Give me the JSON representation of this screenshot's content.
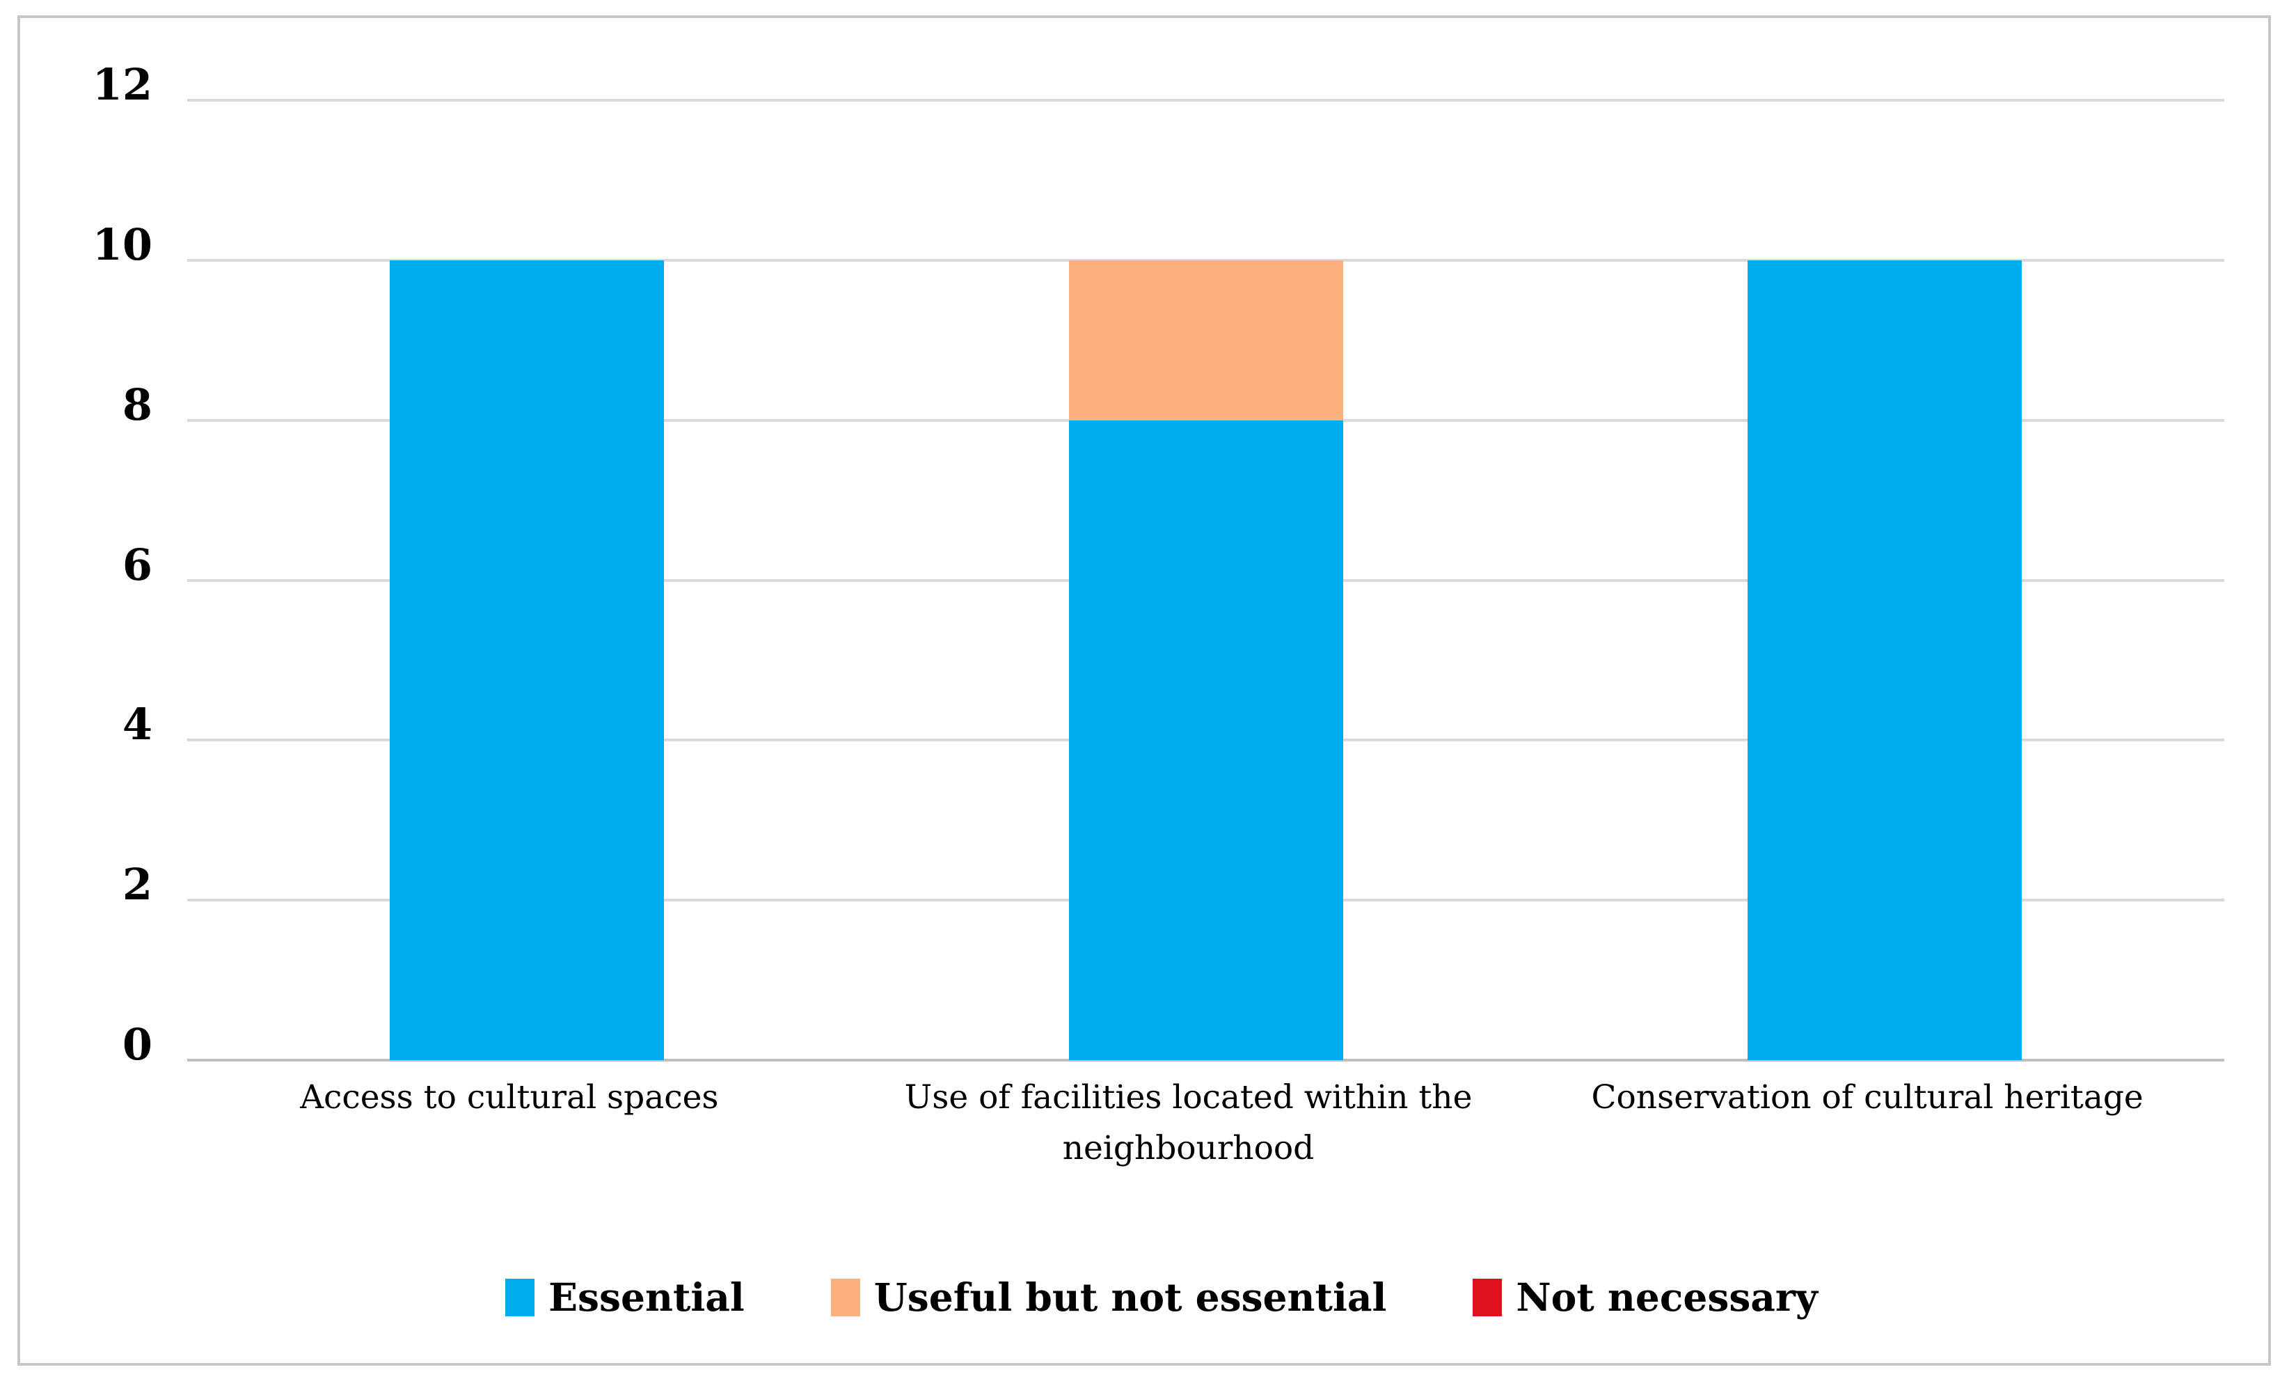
{
  "chart_data": {
    "type": "bar",
    "stacked": true,
    "title": "",
    "xlabel": "",
    "ylabel": "",
    "categories": [
      "Access to cultural spaces",
      "Use of facilities located within the neighbourhood",
      "Conservation of cultural heritage"
    ],
    "series": [
      {
        "name": "Essential",
        "color": "#00AEEF",
        "values": [
          10,
          8,
          10
        ]
      },
      {
        "name": "Useful but not essential",
        "color": "#FDB07E",
        "values": [
          0,
          2,
          0
        ]
      },
      {
        "name": "Not necessary",
        "color": "#E0101C",
        "values": [
          0,
          0,
          0
        ]
      }
    ],
    "ylim": [
      0,
      12
    ],
    "yticks": [
      0,
      2,
      4,
      6,
      8,
      10,
      12
    ],
    "grid": true,
    "legend_position": "bottom"
  },
  "colors": {
    "gridline": "#D9D9D9",
    "axis_baseline": "#BFBFBF",
    "frame_border": "#C6C6C6",
    "text": "#000000",
    "background": "#FFFFFF"
  }
}
